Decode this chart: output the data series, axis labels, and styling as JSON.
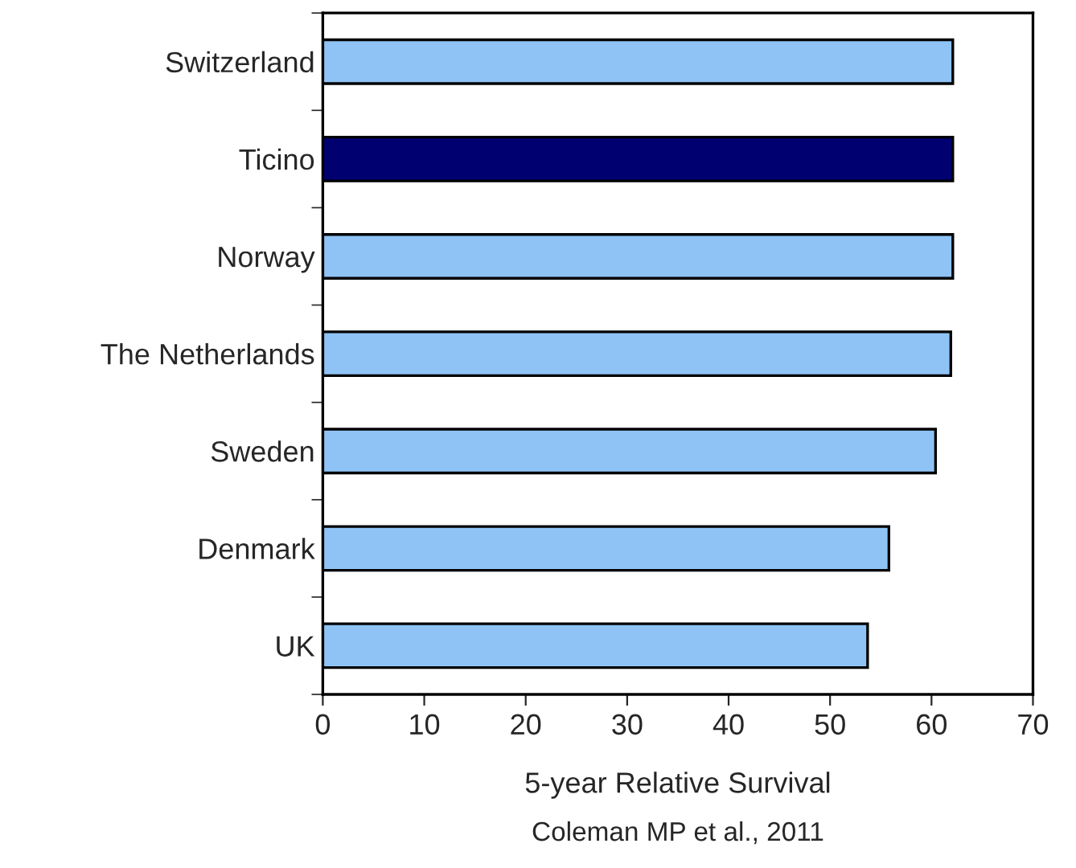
{
  "chart_data": {
    "type": "bar",
    "orientation": "horizontal",
    "categories": [
      "Switzerland",
      "Ticino",
      "Norway",
      "The Netherlands",
      "Sweden",
      "Denmark",
      "UK"
    ],
    "values": [
      62.1,
      62.1,
      62.1,
      61.9,
      60.4,
      55.8,
      53.7
    ],
    "colors": [
      "#8fc3f5",
      "#000070",
      "#8fc3f5",
      "#8fc3f5",
      "#8fc3f5",
      "#8fc3f5",
      "#8fc3f5"
    ],
    "xlabel": "5-year Relative Survival",
    "annotations": [
      "Coleman MP et al., 2011"
    ],
    "xlim": [
      0,
      70
    ],
    "xticks": [
      0,
      10,
      20,
      30,
      40,
      50,
      60,
      70
    ],
    "grid": false,
    "legend": false
  }
}
